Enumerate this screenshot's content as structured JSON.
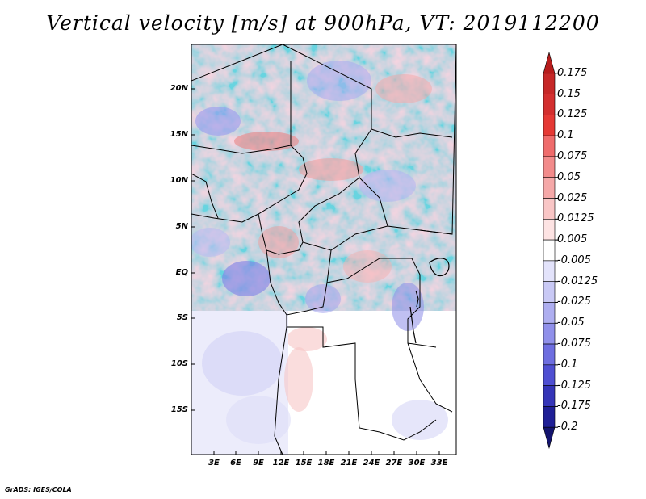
{
  "title": "Vertical velocity [m/s] at 900hPa, VT: 2019112200",
  "y_ticks": [
    "20N",
    "15N",
    "10N",
    "5N",
    "EQ",
    "5S",
    "10S",
    "15S"
  ],
  "x_ticks": [
    "3E",
    "6E",
    "9E",
    "12E",
    "15E",
    "18E",
    "21E",
    "24E",
    "27E",
    "30E",
    "33E"
  ],
  "colorbar": {
    "labels": [
      "0.175",
      "0.15",
      "0.125",
      "0.1",
      "0.075",
      "0.05",
      "0.025",
      "0.0125",
      "0.005",
      "-0.005",
      "-0.0125",
      "-0.025",
      "-0.05",
      "-0.075",
      "-0.1",
      "-0.125",
      "-0.175",
      "-0.2"
    ],
    "colors": [
      "#b71c1c",
      "#c62828",
      "#d32f2f",
      "#e53935",
      "#ef6c6c",
      "#f28b8b",
      "#f5a8a8",
      "#f9c6c6",
      "#fde3e3",
      "#ffffff",
      "#e3e3fb",
      "#c9c9f5",
      "#aeaef0",
      "#9090ea",
      "#6e6ee0",
      "#4f4fd2",
      "#3535b8",
      "#1f1f96",
      "#13136e"
    ]
  },
  "footer": "GrADS: IGES/COLA"
}
